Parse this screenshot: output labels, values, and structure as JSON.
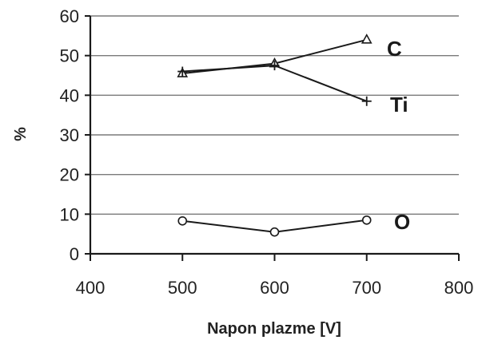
{
  "chart_data": {
    "type": "line",
    "title": "",
    "xlabel": "Napon plazme [V]",
    "ylabel": "%",
    "xlim": [
      400,
      800
    ],
    "ylim": [
      0,
      60
    ],
    "x_ticks": [
      "400",
      "500",
      "600",
      "700",
      "800"
    ],
    "y_ticks": [
      "0",
      "10",
      "20",
      "30",
      "40",
      "50",
      "60"
    ],
    "grid": "horizontal",
    "legend": "inline labels at right end of each series",
    "series": [
      {
        "name": "C",
        "marker": "triangle",
        "x": [
          500,
          600,
          700
        ],
        "values": [
          45.5,
          48,
          54
        ]
      },
      {
        "name": "Ti",
        "marker": "plus",
        "x": [
          500,
          600,
          700
        ],
        "values": [
          46,
          47.5,
          38.5
        ]
      },
      {
        "name": "O",
        "marker": "circle",
        "x": [
          500,
          600,
          700
        ],
        "values": [
          8.3,
          5.5,
          8.5
        ]
      }
    ]
  }
}
